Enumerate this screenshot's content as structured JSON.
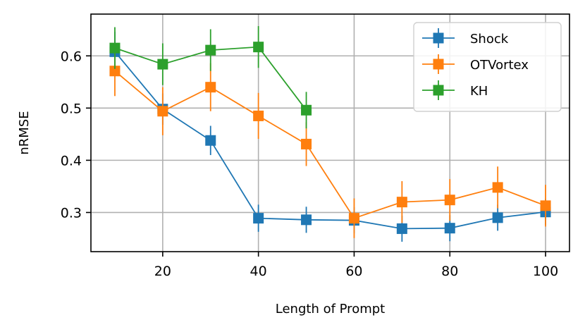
{
  "chart_data": {
    "type": "line",
    "title": "",
    "xlabel": "Length of Prompt",
    "ylabel": "nRMSE",
    "xlim": [
      5,
      105
    ],
    "ylim": [
      0.225,
      0.68
    ],
    "xticks": [
      20,
      40,
      60,
      80,
      100
    ],
    "yticks": [
      0.3,
      0.4,
      0.5,
      0.6
    ],
    "ytick_labels": [
      "0.3",
      "0.4",
      "0.5",
      "0.6"
    ],
    "grid": true,
    "legend_position": "top-right",
    "series": [
      {
        "name": "Shock",
        "color": "#1f77b4",
        "marker": "square",
        "x": [
          10,
          20,
          30,
          40,
          50,
          60,
          70,
          80,
          90,
          100
        ],
        "y": [
          0.608,
          0.498,
          0.438,
          0.289,
          0.286,
          0.285,
          0.269,
          0.27,
          0.29,
          0.301
        ],
        "yerr": [
          0.038,
          0.03,
          0.028,
          0.026,
          0.025,
          0.025,
          0.025,
          0.025,
          0.025,
          0.025
        ]
      },
      {
        "name": "OTVortex",
        "color": "#ff7f0e",
        "marker": "square",
        "x": [
          10,
          20,
          30,
          40,
          50,
          60,
          70,
          80,
          90,
          100
        ],
        "y": [
          0.571,
          0.494,
          0.54,
          0.485,
          0.431,
          0.289,
          0.32,
          0.324,
          0.348,
          0.313
        ],
        "yerr": [
          0.048,
          0.046,
          0.046,
          0.044,
          0.042,
          0.038,
          0.04,
          0.04,
          0.04,
          0.04
        ]
      },
      {
        "name": "KH",
        "color": "#2ca02c",
        "marker": "square",
        "x": [
          10,
          20,
          30,
          40,
          50
        ],
        "y": [
          0.615,
          0.584,
          0.611,
          0.617,
          0.496
        ],
        "yerr": [
          0.04,
          0.04,
          0.04,
          0.04,
          0.035
        ]
      }
    ]
  }
}
